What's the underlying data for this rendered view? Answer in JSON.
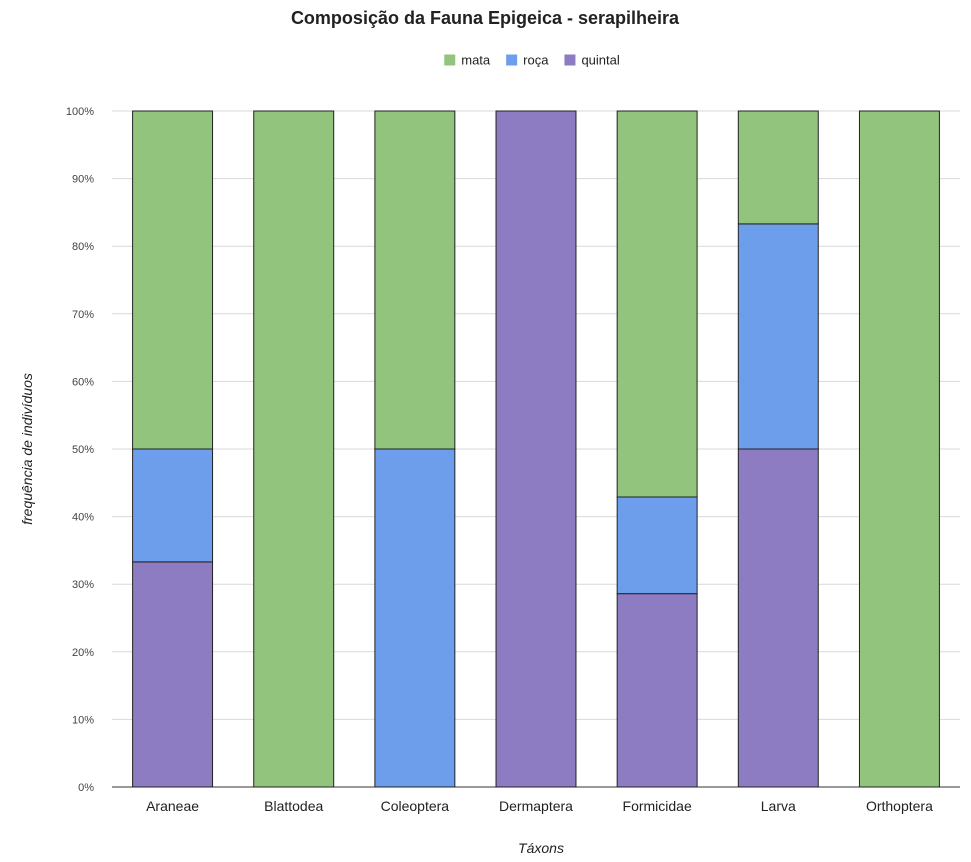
{
  "chart_data": {
    "type": "bar",
    "stacked": "percent",
    "title": "Composição da Fauna Epigeica - serapilheira",
    "xlabel": "Táxons",
    "ylabel": "frequência de indivíduos",
    "ylim": [
      0,
      100
    ],
    "y_ticks": [
      "0%",
      "10%",
      "20%",
      "30%",
      "40%",
      "50%",
      "60%",
      "70%",
      "80%",
      "90%",
      "100%"
    ],
    "grid": true,
    "legend_position": "top-center",
    "categories": [
      "Araneae",
      "Blattodea",
      "Coleoptera",
      "Dermaptera",
      "Formicidae",
      "Larva",
      "Orthoptera"
    ],
    "series": [
      {
        "name": "mata",
        "color": "#93c47d",
        "values": [
          50,
          100,
          50,
          0,
          57.1,
          16.7,
          100
        ]
      },
      {
        "name": "roça",
        "color": "#6d9eeb",
        "values": [
          16.7,
          0,
          50,
          0,
          14.3,
          33.3,
          0
        ]
      },
      {
        "name": "quintal",
        "color": "#8e7cc3",
        "values": [
          33.3,
          0,
          0,
          100,
          28.6,
          50,
          0
        ]
      }
    ],
    "stack_order_bottom_to_top": [
      "quintal",
      "roça",
      "mata"
    ]
  }
}
